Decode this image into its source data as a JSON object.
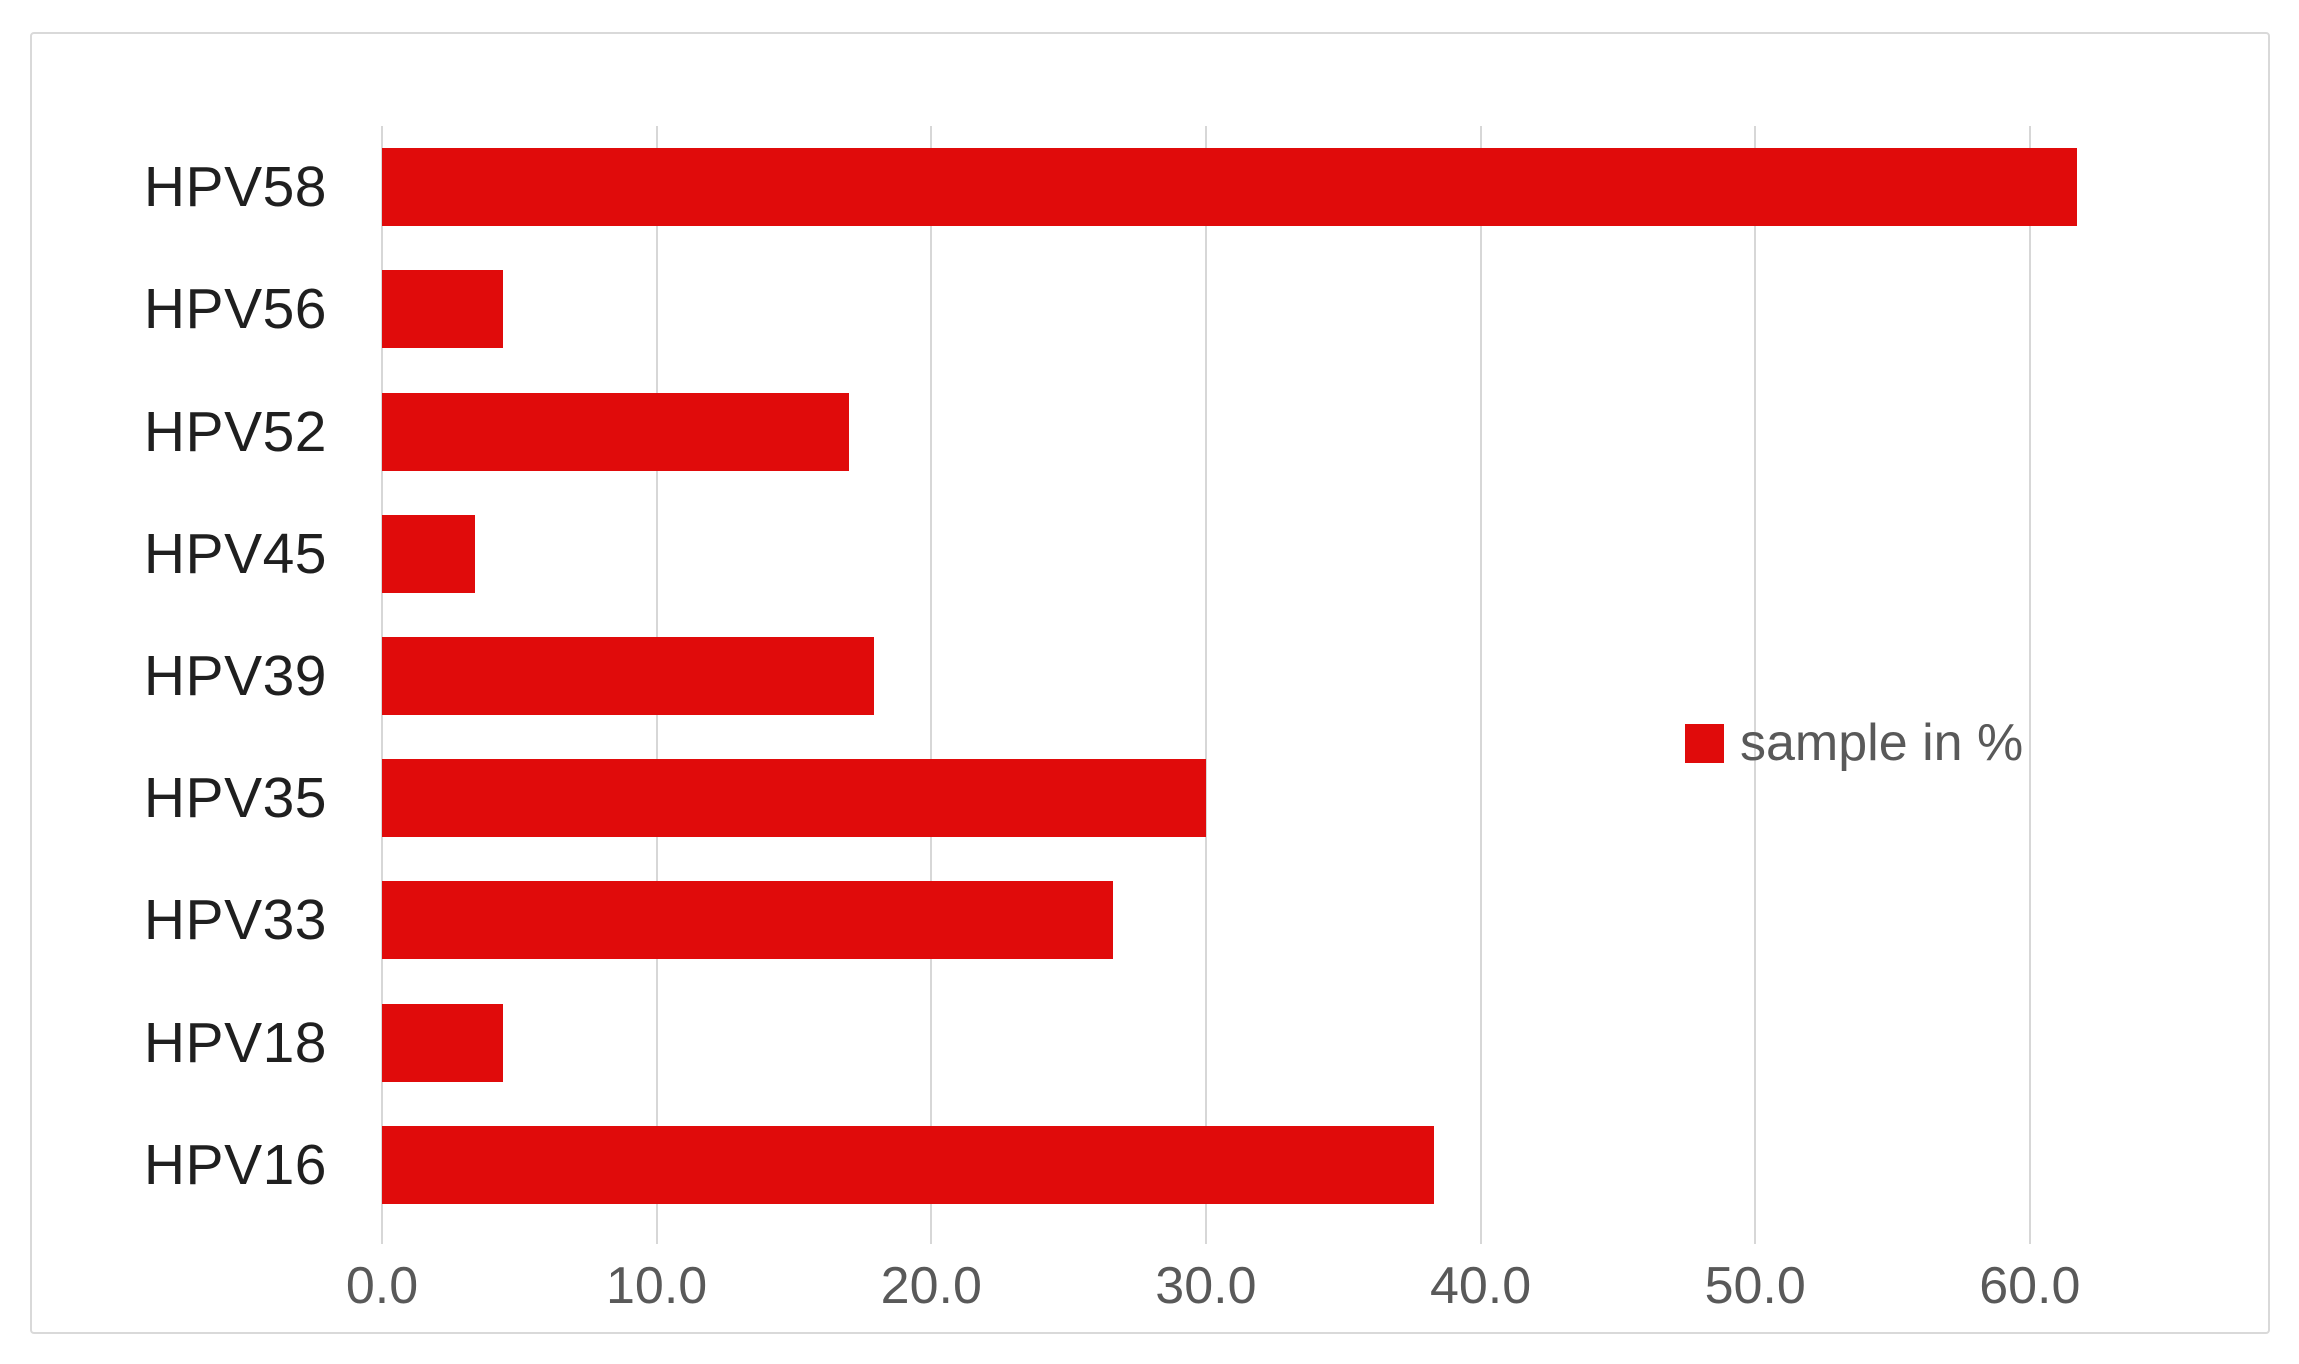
{
  "chart_data": {
    "type": "bar",
    "orientation": "horizontal",
    "title": "",
    "xlabel": "",
    "ylabel": "",
    "categories": [
      "HPV58",
      "HPV56",
      "HPV52",
      "HPV45",
      "HPV39",
      "HPV35",
      "HPV33",
      "HPV18",
      "HPV16"
    ],
    "category_order": "top-to-bottom",
    "series": [
      {
        "name": "sample in %",
        "values": [
          61.7,
          4.4,
          17.0,
          3.4,
          17.9,
          30.0,
          26.6,
          4.4,
          38.3
        ]
      }
    ],
    "xlim": [
      0,
      69
    ],
    "x_ticks": [
      0,
      10,
      20,
      30,
      40,
      50,
      60
    ],
    "x_tick_labels": [
      "0.0",
      "10.0",
      "20.0",
      "30.0",
      "40.0",
      "50.0",
      "60.0"
    ],
    "grid": "vertical gridlines only, with outside tick stubs below axis",
    "legend_position": "center-right inside plot"
  },
  "legend": {
    "label": "sample in %"
  },
  "colors": {
    "bar": "#e00b0b",
    "gridline": "#d7d7d7",
    "frame_border": "#d9d9d9",
    "axis_text": "#595959",
    "category_text": "#1f1f1f",
    "legend_text": "#595959",
    "background": "#ffffff"
  }
}
